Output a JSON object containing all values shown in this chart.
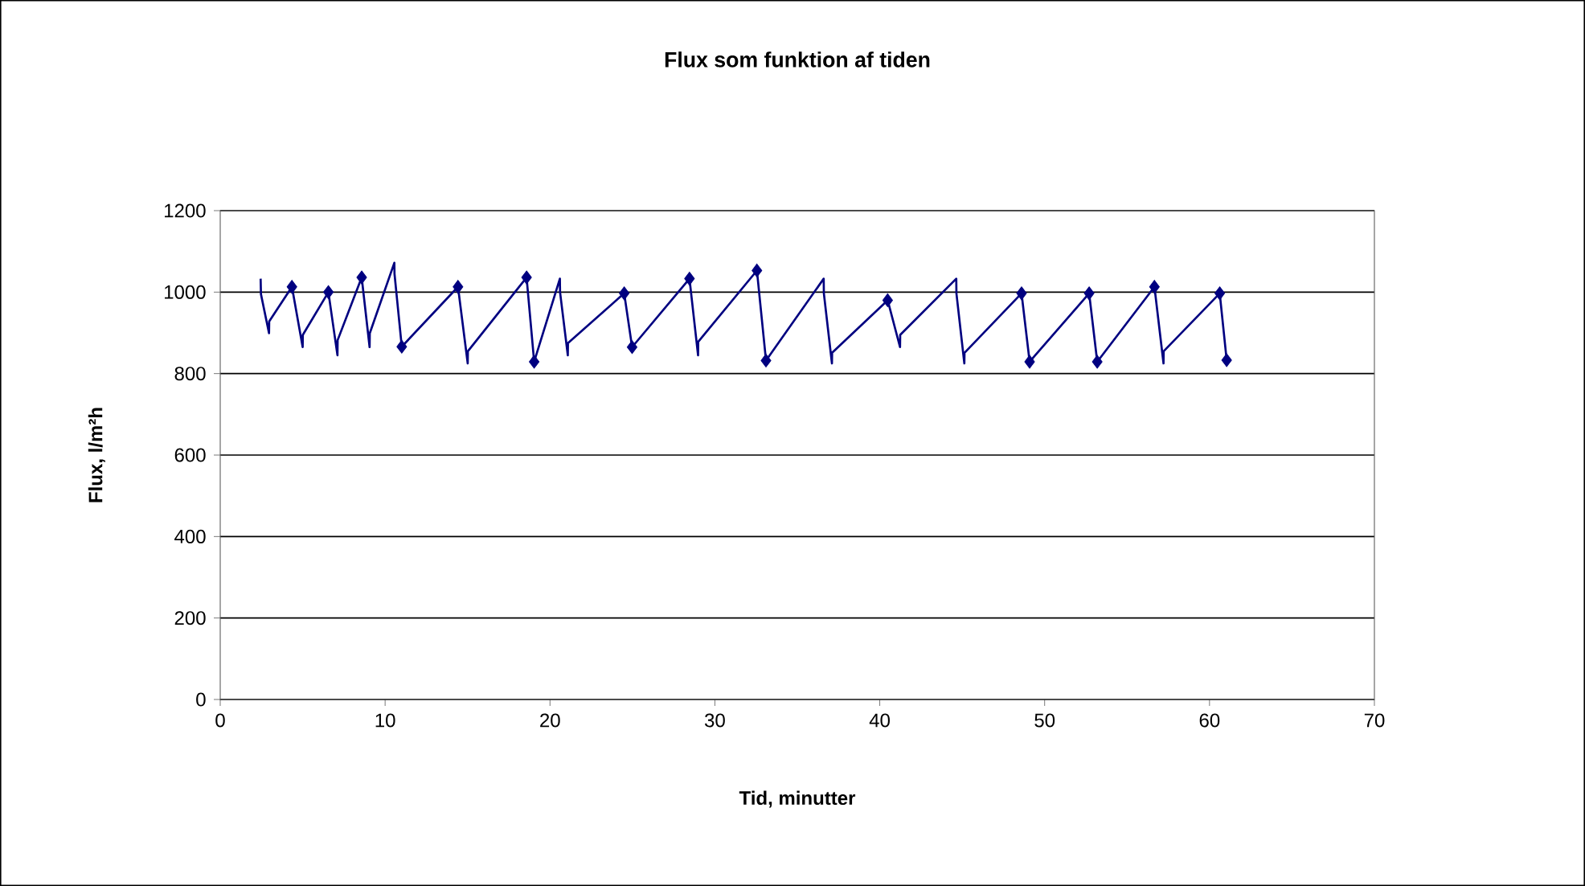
{
  "chart_data": {
    "type": "line",
    "title": "Flux som funktion af tiden",
    "xlabel": "Tid, minutter",
    "ylabel": "Flux, l/m²h",
    "series": [
      {
        "color": "#000080",
        "marker": "none",
        "x": [
          2.45,
          2.47,
          2.96,
          2.97,
          4.35,
          5.0,
          5.01,
          6.56,
          7.11,
          7.12,
          8.58,
          9.06,
          9.07,
          10.56,
          10.57,
          11.01,
          14.42,
          15.01,
          15.02,
          18.58,
          19.04,
          20.6,
          20.61,
          21.08,
          21.09,
          24.5,
          24.98,
          28.46,
          28.98,
          28.99,
          32.55,
          33.1,
          36.6,
          36.61,
          37.1,
          37.11,
          40.48,
          41.23,
          41.24,
          44.64,
          44.65,
          45.13,
          45.14,
          48.6,
          49.09,
          52.7,
          53.19,
          56.66,
          57.21,
          57.22,
          60.62,
          61.04
        ],
        "values": [
          1033,
          995,
          899,
          928,
          1013,
          865,
          895,
          1000,
          845,
          882,
          1036,
          865,
          899,
          1072,
          1045,
          866,
          1013,
          825,
          855,
          1036,
          829,
          1033,
          1000,
          845,
          875,
          997,
          865,
          1033,
          845,
          878,
          1053,
          832,
          1033,
          997,
          825,
          851,
          980,
          865,
          895,
          1033,
          997,
          825,
          851,
          997,
          829,
          997,
          829,
          1013,
          825,
          855,
          997,
          833
        ]
      },
      {
        "type": "scatter",
        "color": "#000080",
        "marker": "diamond",
        "x": [
          4.35,
          6.56,
          8.58,
          11.01,
          14.42,
          18.58,
          19.04,
          24.5,
          24.98,
          28.46,
          32.55,
          33.1,
          40.48,
          48.6,
          49.09,
          52.7,
          53.19,
          56.66,
          60.62,
          61.04
        ],
        "values": [
          1013,
          1000,
          1036,
          866,
          1013,
          1036,
          829,
          997,
          865,
          1033,
          1053,
          832,
          980,
          997,
          829,
          997,
          829,
          1013,
          997,
          833
        ]
      }
    ],
    "xlim": [
      0,
      70
    ],
    "xticks": [
      0,
      10,
      20,
      30,
      40,
      50,
      60,
      70
    ],
    "ylim": [
      0,
      1200
    ],
    "yticks": [
      0,
      200,
      400,
      600,
      800,
      1000,
      1200
    ],
    "grid": "y"
  }
}
